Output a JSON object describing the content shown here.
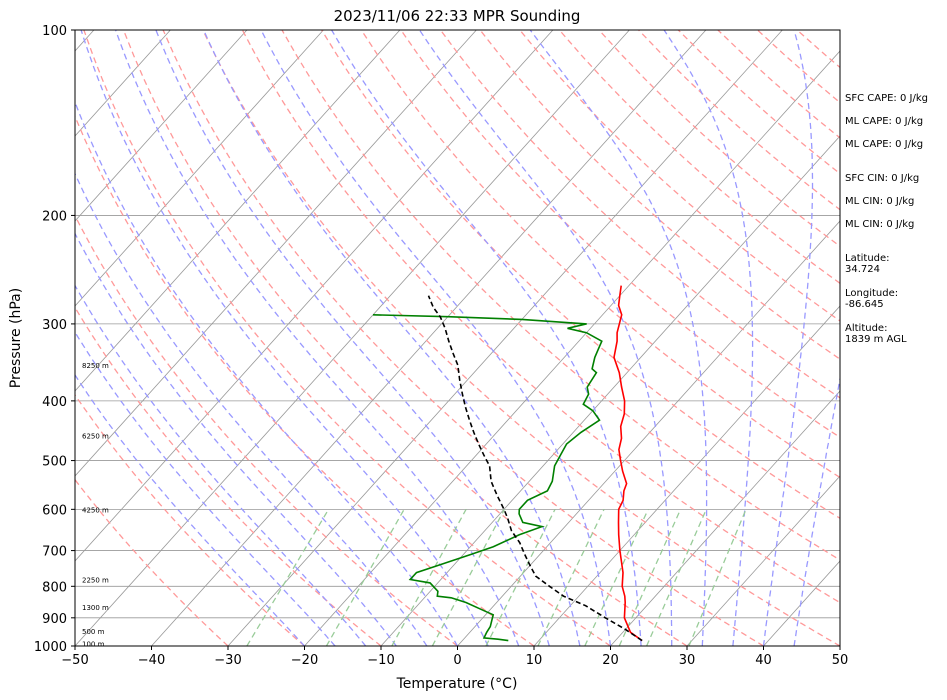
{
  "chart_data": {
    "type": "line",
    "title": "2023/11/06 22:33 MPR Sounding",
    "xlabel": "Temperature (°C)",
    "ylabel": "Pressure (hPa)",
    "xlim": [
      -50,
      50
    ],
    "ylim": [
      1000,
      100
    ],
    "log_y": true,
    "grid": true,
    "x_ticks": [
      "−50",
      "−40",
      "−30",
      "−20",
      "−10",
      "0",
      "10",
      "20",
      "30",
      "40",
      "50"
    ],
    "y_ticks": [
      "1000",
      "900",
      "800",
      "700",
      "600",
      "500",
      "400",
      "300",
      "200",
      "100"
    ],
    "height_labels": [
      "8250 m",
      "6250 m",
      "4250 m",
      "2250 m",
      "1300 m",
      "500 m",
      "100 m"
    ],
    "series": [
      {
        "color": "#ff0000",
        "points": [
          [
            23.5,
            980
          ],
          [
            21,
            950
          ],
          [
            18.5,
            900
          ],
          [
            16.8,
            850
          ],
          [
            16,
            830
          ],
          [
            14.5,
            800
          ],
          [
            13,
            760
          ],
          [
            10,
            700
          ],
          [
            8,
            660
          ],
          [
            6.5,
            630
          ],
          [
            5,
            600
          ],
          [
            4.5,
            580
          ],
          [
            3.5,
            560
          ],
          [
            3,
            545
          ],
          [
            1,
            520
          ],
          [
            -0.5,
            500
          ],
          [
            -2,
            480
          ],
          [
            -3,
            460
          ],
          [
            -4.5,
            440
          ],
          [
            -5.5,
            420
          ],
          [
            -7,
            400
          ],
          [
            -9,
            380
          ],
          [
            -11,
            360
          ],
          [
            -13.5,
            340
          ],
          [
            -15,
            320
          ],
          [
            -16,
            310
          ],
          [
            -17.5,
            290
          ],
          [
            -19,
            280
          ],
          [
            -20,
            270
          ],
          [
            -21,
            260
          ]
        ]
      },
      {
        "color": "#008000",
        "points": [
          [
            6,
            980
          ],
          [
            4.5,
            975
          ],
          [
            2.5,
            970
          ],
          [
            2.2,
            950
          ],
          [
            2,
            930
          ],
          [
            1.5,
            910
          ],
          [
            1,
            890
          ],
          [
            -1.5,
            870
          ],
          [
            -4,
            850
          ],
          [
            -6.5,
            835
          ],
          [
            -8.5,
            830
          ],
          [
            -9,
            815
          ],
          [
            -11,
            790
          ],
          [
            -14,
            780
          ],
          [
            -14,
            760
          ],
          [
            -12,
            740
          ],
          [
            -9,
            710
          ],
          [
            -7,
            690
          ],
          [
            -5,
            660
          ],
          [
            -3,
            640
          ],
          [
            -6,
            630
          ],
          [
            -7.5,
            610
          ],
          [
            -8,
            600
          ],
          [
            -8,
            580
          ],
          [
            -6.5,
            560
          ],
          [
            -7,
            540
          ],
          [
            -8.5,
            510
          ],
          [
            -9,
            490
          ],
          [
            -9.5,
            470
          ],
          [
            -9,
            450
          ],
          [
            -8,
            430
          ],
          [
            -10,
            415
          ],
          [
            -12,
            405
          ],
          [
            -12.5,
            390
          ],
          [
            -13.5,
            380
          ],
          [
            -14,
            360
          ],
          [
            -15,
            355
          ],
          [
            -16,
            340
          ],
          [
            -16.5,
            330
          ],
          [
            -17,
            320
          ],
          [
            -20,
            310
          ],
          [
            -23,
            305
          ],
          [
            -21,
            300
          ],
          [
            -30,
            295
          ],
          [
            -40,
            292
          ],
          [
            -50,
            290
          ]
        ]
      },
      {
        "color": "#000000",
        "points": [
          [
            23.5,
            980
          ],
          [
            20,
            940
          ],
          [
            16,
            900
          ],
          [
            12,
            860
          ],
          [
            8,
            830
          ],
          [
            5,
            800
          ],
          [
            2,
            770
          ],
          [
            0,
            740
          ],
          [
            -2,
            710
          ],
          [
            -4,
            680
          ],
          [
            -6.5,
            650
          ],
          [
            -8.5,
            620
          ],
          [
            -10,
            600
          ],
          [
            -12.5,
            570
          ],
          [
            -15,
            540
          ],
          [
            -17,
            510
          ],
          [
            -19,
            490
          ],
          [
            -21,
            470
          ],
          [
            -23,
            450
          ],
          [
            -25,
            430
          ],
          [
            -27,
            410
          ],
          [
            -29,
            390
          ],
          [
            -31,
            370
          ],
          [
            -33,
            350
          ],
          [
            -35,
            335
          ],
          [
            -37,
            320
          ],
          [
            -39,
            305
          ],
          [
            -41,
            292
          ],
          [
            -43,
            282
          ],
          [
            -45,
            270
          ]
        ]
      }
    ]
  },
  "indices": {
    "sfc_cape": "SFC CAPE: 0 J/kg",
    "ml_cape_1": "ML CAPE: 0 J/kg",
    "ml_cape_2": "ML CAPE: 0 J/kg",
    "sfc_cin": "SFC CIN: 0 J/kg",
    "ml_cin_1": "ML CIN: 0 J/kg",
    "ml_cin_2": "ML CIN: 0 J/kg",
    "latitude_label": "Latitude:",
    "latitude_value": "34.724",
    "longitude_label": "Longitude:",
    "longitude_value": "-86.645",
    "altitude_label": "Altitude:",
    "altitude_value": "1839 m AGL"
  },
  "colors": {
    "temperature": "#ff0000",
    "dewpoint": "#008000",
    "parcel": "#000000",
    "dry_adiabat": "#ff9999",
    "moist_adiabat": "#9999ff",
    "mixing_ratio": "#99cc99",
    "isotherm": "#999999"
  }
}
